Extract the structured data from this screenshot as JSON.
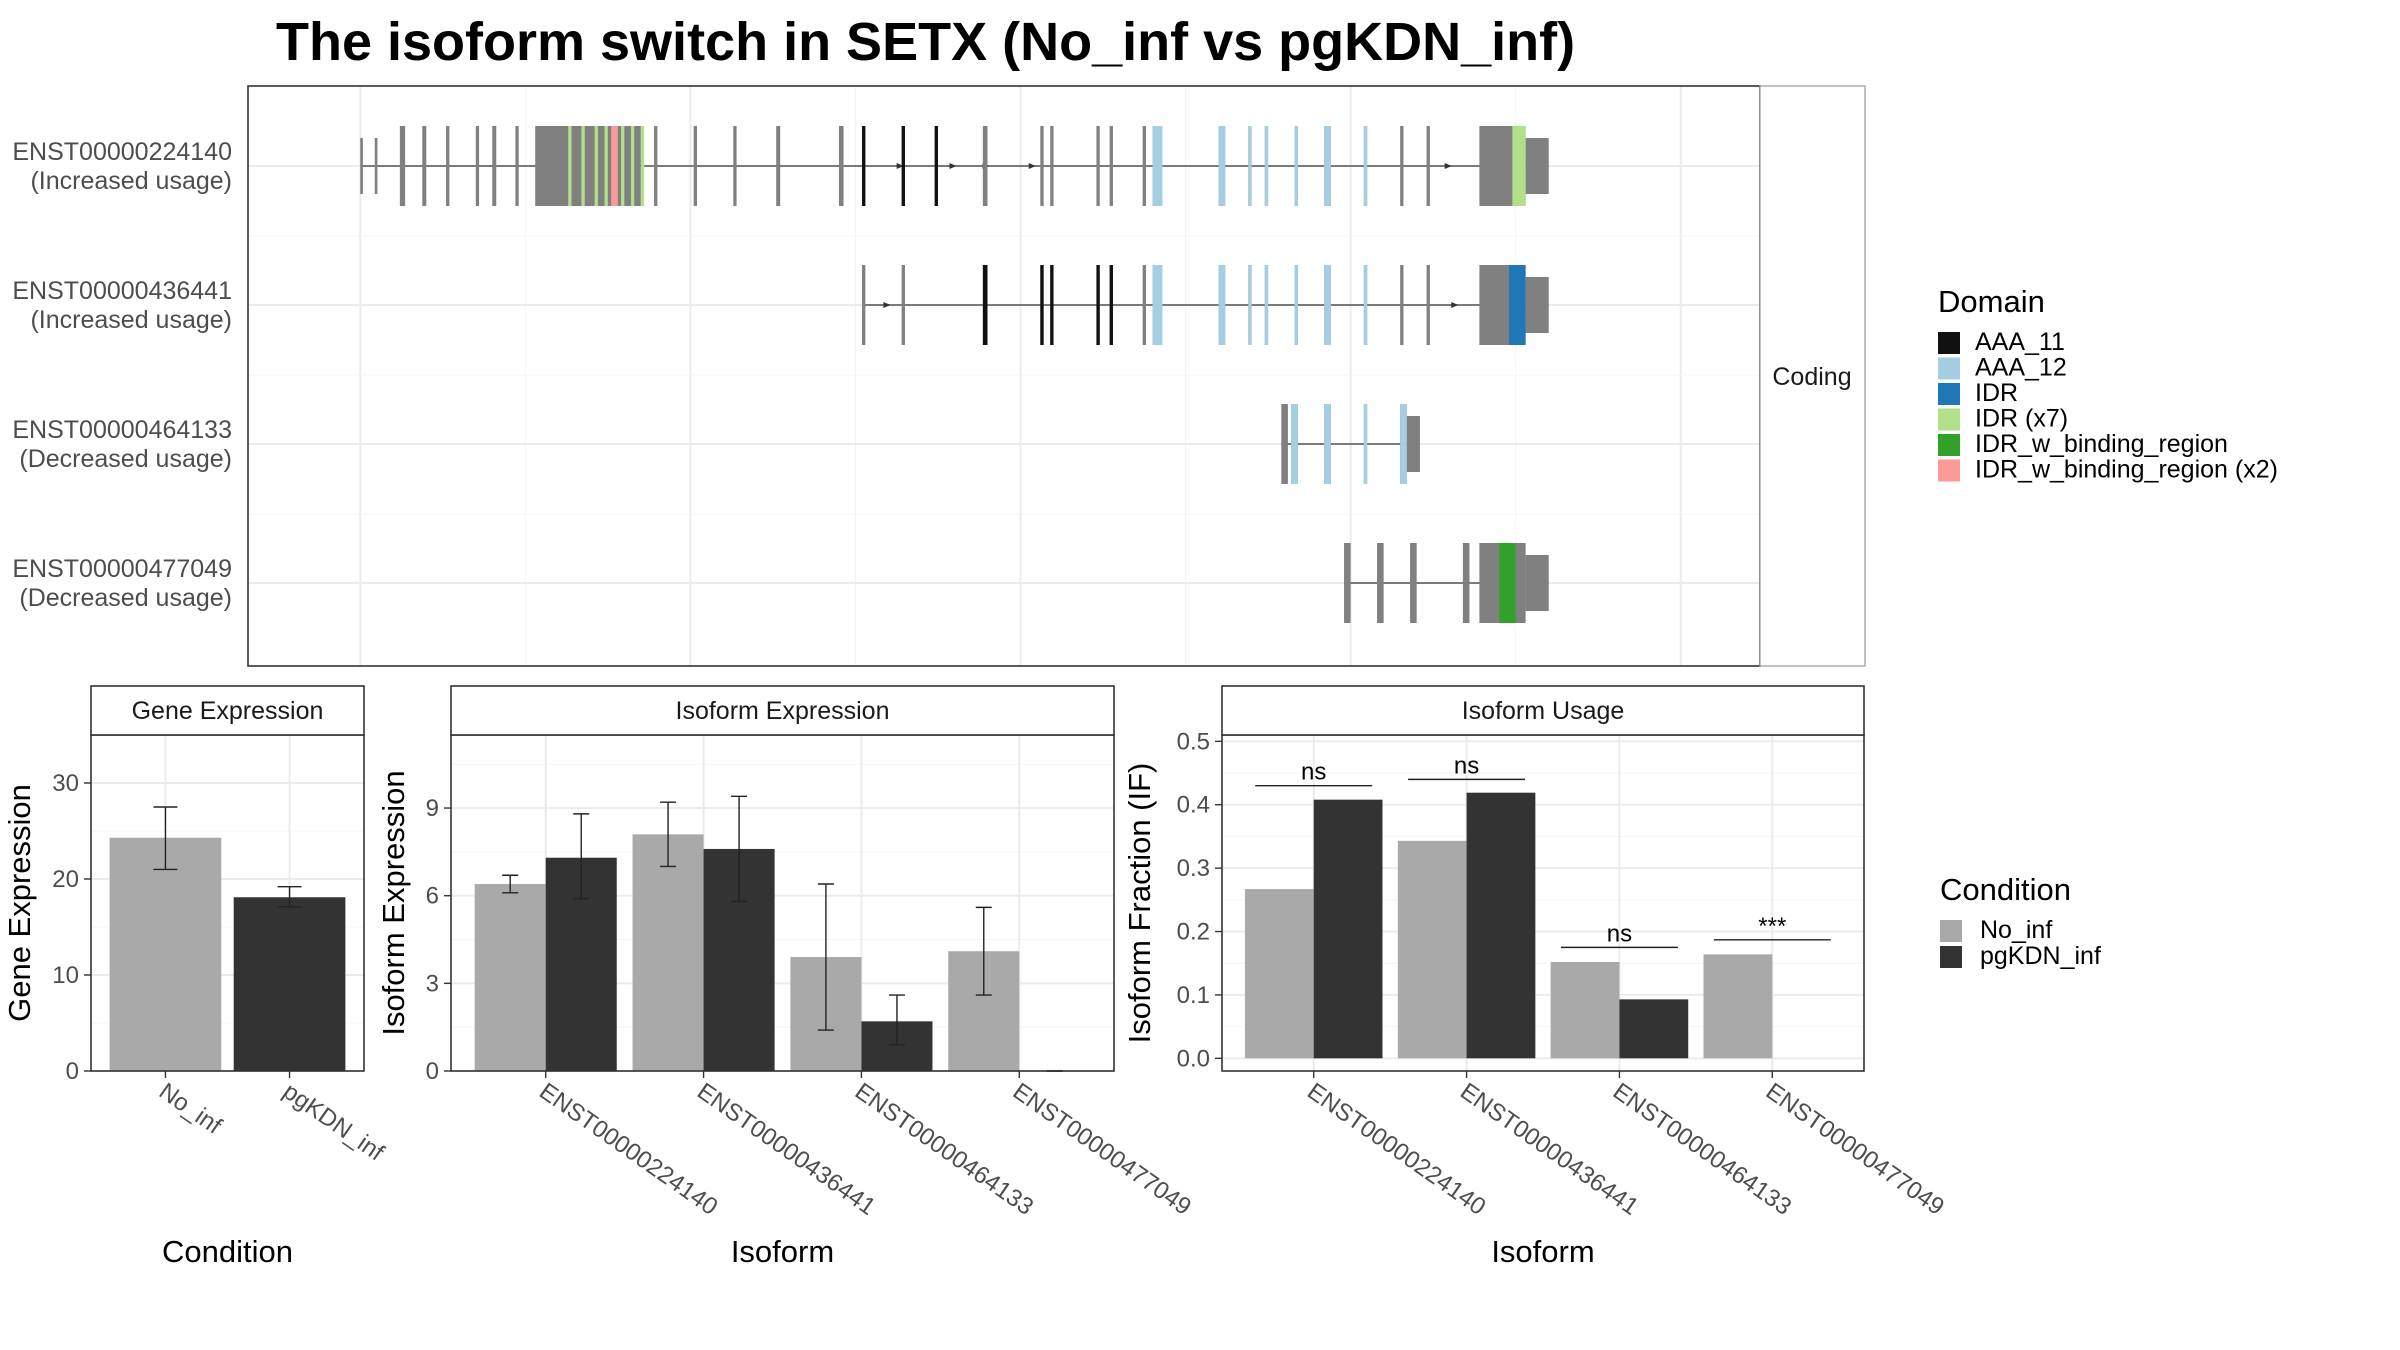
{
  "figure": {
    "title": "The isoform switch in SETX (No_inf vs pgKDN_inf)"
  },
  "colors": {
    "exon": "#808080",
    "AAA_11": "#111111",
    "AAA_12": "#a6cee3",
    "IDR": "#1f78b4",
    "IDR (x7)": "#b2df8a",
    "IDR_w_binding_region": "#33a02c",
    "IDR_w_binding_region (x2)": "#fb9a99",
    "No_inf": "#a9a9a9",
    "pgKDN_inf": "#333333"
  },
  "chart_data": [
    {
      "type": "gene_structure",
      "facet_label": "Coding",
      "isoforms": [
        {
          "id": "ENST00000224140",
          "label": "(Increased usage)",
          "exons": [
            [
              0,
              0.4
            ],
            [
              2.2,
              2.6
            ],
            [
              6,
              6.8
            ],
            [
              9.4,
              10
            ],
            [
              13,
              13.5
            ],
            [
              17.5,
              18
            ],
            [
              20,
              20.6
            ],
            [
              23.5,
              24
            ],
            [
              26.5,
              42.5
            ],
            [
              44.5,
              45
            ],
            [
              50.5,
              51
            ],
            [
              56.5,
              57
            ],
            [
              63,
              63.6
            ],
            [
              72.5,
              73.2
            ],
            [
              76,
              76.5
            ],
            [
              82,
              82.5
            ],
            [
              87,
              87.5
            ],
            [
              94.3,
              95
            ],
            [
              103,
              103.5
            ],
            [
              104.5,
              105
            ],
            [
              111.5,
              112
            ],
            [
              113.5,
              114
            ],
            [
              118.5,
              119
            ],
            [
              120,
              120.3
            ],
            [
              130,
              131
            ],
            [
              134.5,
              135
            ],
            [
              137,
              137.5
            ],
            [
              141.5,
              142
            ],
            [
              146,
              147
            ],
            [
              152,
              152.5
            ],
            [
              157.5,
              158
            ],
            [
              161.5,
              162
            ],
            [
              169.5,
              176.5
            ]
          ],
          "utr3": [
            176.5,
            180
          ],
          "domains": [
            {
              "type": "IDR (x7)",
              "ranges": [
                [
                  31.5,
                  32
                ],
                [
                  33.5,
                  34
                ],
                [
                  35.5,
                  36
                ],
                [
                  37,
                  37.5
                ],
                [
                  39.5,
                  40
                ],
                [
                  41,
                  41.5
                ],
                [
                  42.5,
                  43
                ]
              ]
            },
            {
              "type": "IDR_w_binding_region (x2)",
              "ranges": [
                [
                  38,
                  39
                ]
              ]
            },
            {
              "type": "AAA_11",
              "ranges": [
                [
                  76,
                  76.5
                ],
                [
                  82,
                  82.5
                ],
                [
                  87,
                  87.5
                ]
              ]
            },
            {
              "type": "AAA_12",
              "ranges": [
                [
                  120,
                  121.5
                ],
                [
                  130,
                  131
                ],
                [
                  134.5,
                  135
                ],
                [
                  137,
                  137.5
                ],
                [
                  141.5,
                  142
                ],
                [
                  146,
                  147
                ],
                [
                  152,
                  152.5
                ]
              ]
            },
            {
              "type": "IDR (x7)",
              "ranges": [
                [
                  174.5,
                  176.5
                ]
              ]
            }
          ],
          "arrows": [
            82,
            90,
            95,
            102,
            165
          ]
        },
        {
          "id": "ENST00000436441",
          "label": "(Increased usage)",
          "exons": [
            [
              76,
              76.5
            ],
            [
              82,
              82.5
            ],
            [
              94.3,
              95
            ],
            [
              103,
              103.5
            ],
            [
              104.5,
              105
            ],
            [
              111.5,
              112
            ],
            [
              113.5,
              114
            ],
            [
              118.5,
              119
            ],
            [
              120,
              120.3
            ],
            [
              130,
              131
            ],
            [
              134.5,
              135
            ],
            [
              137,
              137.5
            ],
            [
              141.5,
              142
            ],
            [
              146,
              147
            ],
            [
              152,
              152.5
            ],
            [
              157.5,
              158
            ],
            [
              161.5,
              162
            ],
            [
              169.5,
              176.5
            ]
          ],
          "utr3": [
            176.5,
            180
          ],
          "domains": [
            {
              "type": "AAA_11",
              "ranges": [
                [
                  94.3,
                  95
                ],
                [
                  103,
                  103.5
                ],
                [
                  104.5,
                  105
                ],
                [
                  111.5,
                  112
                ],
                [
                  113.5,
                  114
                ]
              ]
            },
            {
              "type": "AAA_12",
              "ranges": [
                [
                  120,
                  121.5
                ],
                [
                  130,
                  131
                ],
                [
                  134.5,
                  135
                ],
                [
                  137,
                  137.5
                ],
                [
                  141.5,
                  142
                ],
                [
                  146,
                  147
                ],
                [
                  152,
                  152.5
                ]
              ]
            },
            {
              "type": "IDR",
              "ranges": [
                [
                  174,
                  176.5
                ]
              ]
            }
          ],
          "arrows": [
            80,
            166
          ]
        },
        {
          "id": "ENST00000464133",
          "label": "(Decreased usage)",
          "exons": [
            [
              139.5,
              140.5
            ],
            [
              141,
              142
            ],
            [
              146,
              147
            ],
            [
              152,
              152.5
            ],
            [
              157.5,
              158.5
            ]
          ],
          "utr3": [
            158.5,
            160.5
          ],
          "domains": [
            {
              "type": "AAA_12",
              "ranges": [
                [
                  141,
                  142
                ],
                [
                  146,
                  147
                ],
                [
                  152,
                  152.5
                ],
                [
                  157.5,
                  158.5
                ]
              ]
            }
          ],
          "arrows": []
        },
        {
          "id": "ENST00000477049",
          "label": "(Decreased usage)",
          "exons": [
            [
              149,
              150
            ],
            [
              154,
              155
            ],
            [
              159,
              160
            ],
            [
              167,
              168
            ],
            [
              169.5,
              176.5
            ]
          ],
          "utr3": [
            176.5,
            180
          ],
          "domains": [
            {
              "type": "IDR_w_binding_region",
              "ranges": [
                [
                  172.5,
                  175
                ]
              ]
            }
          ],
          "arrows": []
        }
      ]
    },
    {
      "type": "bar",
      "facet_label": "Gene Expression",
      "xlabel": "Condition",
      "ylabel": "Gene Expression",
      "ylim": [
        0,
        35
      ],
      "yticks": [
        0,
        10,
        20,
        30
      ],
      "categories": [
        "No_inf",
        "pgKDN_inf"
      ],
      "values": [
        24.3,
        18.1
      ],
      "errors": [
        [
          21.0,
          27.5
        ],
        [
          17.1,
          19.2
        ]
      ]
    },
    {
      "type": "bar",
      "facet_label": "Isoform Expression",
      "xlabel": "Isoform",
      "ylabel": "Isoform Expression",
      "ylim": [
        0,
        11.5
      ],
      "yticks": [
        0,
        3,
        6,
        9
      ],
      "categories": [
        "ENST00000224140",
        "ENST00000436441",
        "ENST00000464133",
        "ENST00000477049"
      ],
      "series": [
        {
          "name": "No_inf",
          "values": [
            6.4,
            8.1,
            3.9,
            4.1
          ],
          "errors": [
            [
              6.1,
              6.7
            ],
            [
              7.0,
              9.2
            ],
            [
              1.4,
              6.4
            ],
            [
              2.6,
              5.6
            ]
          ]
        },
        {
          "name": "pgKDN_inf",
          "values": [
            7.3,
            7.6,
            1.7,
            0.0
          ],
          "errors": [
            [
              5.9,
              8.8
            ],
            [
              5.8,
              9.4
            ],
            [
              0.9,
              2.6
            ],
            [
              0.0,
              0.0
            ]
          ]
        }
      ]
    },
    {
      "type": "bar",
      "facet_label": "Isoform Usage",
      "xlabel": "Isoform",
      "ylabel": "Isoform Fraction (IF)",
      "ylim": [
        -0.02,
        0.51
      ],
      "yticks": [
        "0.0",
        "0.1",
        "0.2",
        "0.3",
        "0.4",
        "0.5"
      ],
      "categories": [
        "ENST00000224140",
        "ENST00000436441",
        "ENST00000464133",
        "ENST00000477049"
      ],
      "series": [
        {
          "name": "No_inf",
          "values": [
            0.267,
            0.343,
            0.152,
            0.164
          ]
        },
        {
          "name": "pgKDN_inf",
          "values": [
            0.408,
            0.419,
            0.093,
            0.0
          ]
        }
      ],
      "significance": [
        {
          "label": "ns",
          "y": 0.43
        },
        {
          "label": "ns",
          "y": 0.44
        },
        {
          "label": "ns",
          "y": 0.175
        },
        {
          "label": "***",
          "y": 0.187
        }
      ]
    }
  ],
  "legends": {
    "domain": {
      "title": "Domain",
      "items": [
        "AAA_11",
        "AAA_12",
        "IDR",
        "IDR (x7)",
        "IDR_w_binding_region",
        "IDR_w_binding_region (x2)"
      ]
    },
    "condition": {
      "title": "Condition",
      "items": [
        "No_inf",
        "pgKDN_inf"
      ]
    }
  }
}
